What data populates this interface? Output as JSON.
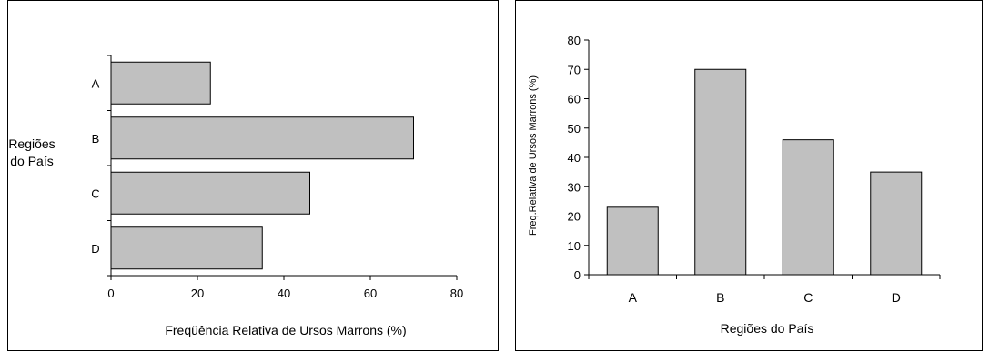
{
  "chart_data": [
    {
      "type": "bar",
      "orientation": "horizontal",
      "title": "",
      "categories": [
        "A",
        "B",
        "C",
        "D"
      ],
      "values": [
        23,
        70,
        46,
        35
      ],
      "xlabel": "Freqüência Relativa de Ursos Marrons (%)",
      "ylabel_lines": [
        "Regiões",
        "do País"
      ],
      "xlim": [
        0,
        80
      ],
      "xticks": [
        "0",
        "20",
        "40",
        "60",
        "80"
      ],
      "grid": false,
      "legend": "none",
      "bar_color": "#c0c0c0"
    },
    {
      "type": "bar",
      "orientation": "vertical",
      "title": "",
      "categories": [
        "A",
        "B",
        "C",
        "D"
      ],
      "values": [
        23,
        70,
        46,
        35
      ],
      "xlabel": "Regiões do País",
      "ylabel": "Freq.Relativa de Ursos Marrons (%)",
      "ylim": [
        0,
        80
      ],
      "yticks": [
        "0",
        "10",
        "20",
        "30",
        "40",
        "50",
        "60",
        "70",
        "80"
      ],
      "grid": false,
      "legend": "none",
      "bar_color": "#c0c0c0"
    }
  ]
}
